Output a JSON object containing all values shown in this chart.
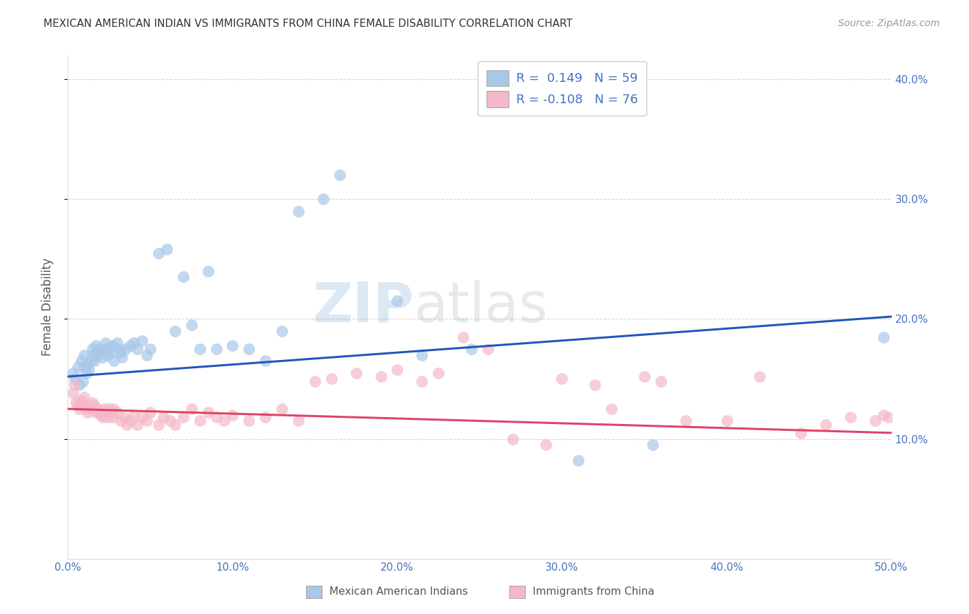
{
  "title": "MEXICAN AMERICAN INDIAN VS IMMIGRANTS FROM CHINA FEMALE DISABILITY CORRELATION CHART",
  "source": "Source: ZipAtlas.com",
  "ylabel": "Female Disability",
  "watermark_zip": "ZIP",
  "watermark_atlas": "atlas",
  "xlim": [
    0,
    0.5
  ],
  "ylim": [
    0,
    0.42
  ],
  "ytick_labels": [
    "10.0%",
    "20.0%",
    "30.0%",
    "40.0%"
  ],
  "ytick_vals": [
    0.1,
    0.2,
    0.3,
    0.4
  ],
  "xtick_vals": [
    0.0,
    0.1,
    0.2,
    0.3,
    0.4,
    0.5
  ],
  "xtick_labels": [
    "0.0%",
    "10.0%",
    "20.0%",
    "30.0%",
    "40.0%",
    "50.0%"
  ],
  "legend_blue_label": "R =  0.149   N = 59",
  "legend_pink_label": "R = -0.108   N = 76",
  "blue_color": "#a8c8e8",
  "pink_color": "#f4b8c8",
  "blue_line_color": "#2255bb",
  "pink_line_color": "#dd4466",
  "tick_label_color": "#4472C4",
  "blue_scatter_x": [
    0.003,
    0.004,
    0.006,
    0.007,
    0.008,
    0.009,
    0.01,
    0.01,
    0.011,
    0.012,
    0.013,
    0.014,
    0.015,
    0.015,
    0.016,
    0.017,
    0.018,
    0.019,
    0.02,
    0.021,
    0.022,
    0.023,
    0.024,
    0.025,
    0.026,
    0.027,
    0.028,
    0.03,
    0.031,
    0.032,
    0.033,
    0.035,
    0.038,
    0.04,
    0.042,
    0.045,
    0.048,
    0.05,
    0.055,
    0.06,
    0.065,
    0.07,
    0.075,
    0.08,
    0.085,
    0.09,
    0.1,
    0.11,
    0.12,
    0.13,
    0.14,
    0.155,
    0.165,
    0.2,
    0.215,
    0.245,
    0.31,
    0.355,
    0.495
  ],
  "blue_scatter_y": [
    0.155,
    0.15,
    0.16,
    0.145,
    0.165,
    0.148,
    0.16,
    0.17,
    0.155,
    0.162,
    0.158,
    0.165,
    0.17,
    0.175,
    0.165,
    0.178,
    0.17,
    0.175,
    0.172,
    0.168,
    0.175,
    0.18,
    0.17,
    0.175,
    0.172,
    0.178,
    0.165,
    0.18,
    0.175,
    0.172,
    0.168,
    0.175,
    0.178,
    0.18,
    0.175,
    0.182,
    0.17,
    0.175,
    0.255,
    0.258,
    0.19,
    0.235,
    0.195,
    0.175,
    0.24,
    0.175,
    0.178,
    0.175,
    0.165,
    0.19,
    0.29,
    0.3,
    0.32,
    0.215,
    0.17,
    0.175,
    0.082,
    0.095,
    0.185
  ],
  "pink_scatter_x": [
    0.003,
    0.004,
    0.005,
    0.006,
    0.007,
    0.008,
    0.009,
    0.01,
    0.011,
    0.012,
    0.013,
    0.014,
    0.015,
    0.016,
    0.017,
    0.018,
    0.019,
    0.02,
    0.021,
    0.022,
    0.023,
    0.024,
    0.025,
    0.026,
    0.027,
    0.028,
    0.03,
    0.032,
    0.034,
    0.036,
    0.038,
    0.04,
    0.042,
    0.045,
    0.048,
    0.05,
    0.055,
    0.058,
    0.062,
    0.065,
    0.07,
    0.075,
    0.08,
    0.085,
    0.09,
    0.095,
    0.1,
    0.11,
    0.12,
    0.13,
    0.14,
    0.15,
    0.16,
    0.175,
    0.19,
    0.2,
    0.215,
    0.225,
    0.24,
    0.255,
    0.27,
    0.29,
    0.3,
    0.32,
    0.33,
    0.35,
    0.36,
    0.375,
    0.4,
    0.42,
    0.445,
    0.46,
    0.475,
    0.49,
    0.495,
    0.498
  ],
  "pink_scatter_y": [
    0.138,
    0.145,
    0.13,
    0.128,
    0.125,
    0.132,
    0.128,
    0.135,
    0.125,
    0.122,
    0.128,
    0.125,
    0.13,
    0.128,
    0.122,
    0.125,
    0.122,
    0.12,
    0.118,
    0.125,
    0.122,
    0.118,
    0.125,
    0.122,
    0.118,
    0.125,
    0.122,
    0.115,
    0.118,
    0.112,
    0.115,
    0.12,
    0.112,
    0.118,
    0.115,
    0.122,
    0.112,
    0.118,
    0.115,
    0.112,
    0.118,
    0.125,
    0.115,
    0.122,
    0.118,
    0.115,
    0.12,
    0.115,
    0.118,
    0.125,
    0.115,
    0.148,
    0.15,
    0.155,
    0.152,
    0.158,
    0.148,
    0.155,
    0.185,
    0.175,
    0.1,
    0.095,
    0.15,
    0.145,
    0.125,
    0.152,
    0.148,
    0.115,
    0.115,
    0.152,
    0.105,
    0.112,
    0.118,
    0.115,
    0.12,
    0.118
  ],
  "blue_trend_x": [
    0.0,
    0.5
  ],
  "blue_trend_y": [
    0.152,
    0.202
  ],
  "pink_trend_x": [
    0.0,
    0.5
  ],
  "pink_trend_y": [
    0.125,
    0.105
  ]
}
